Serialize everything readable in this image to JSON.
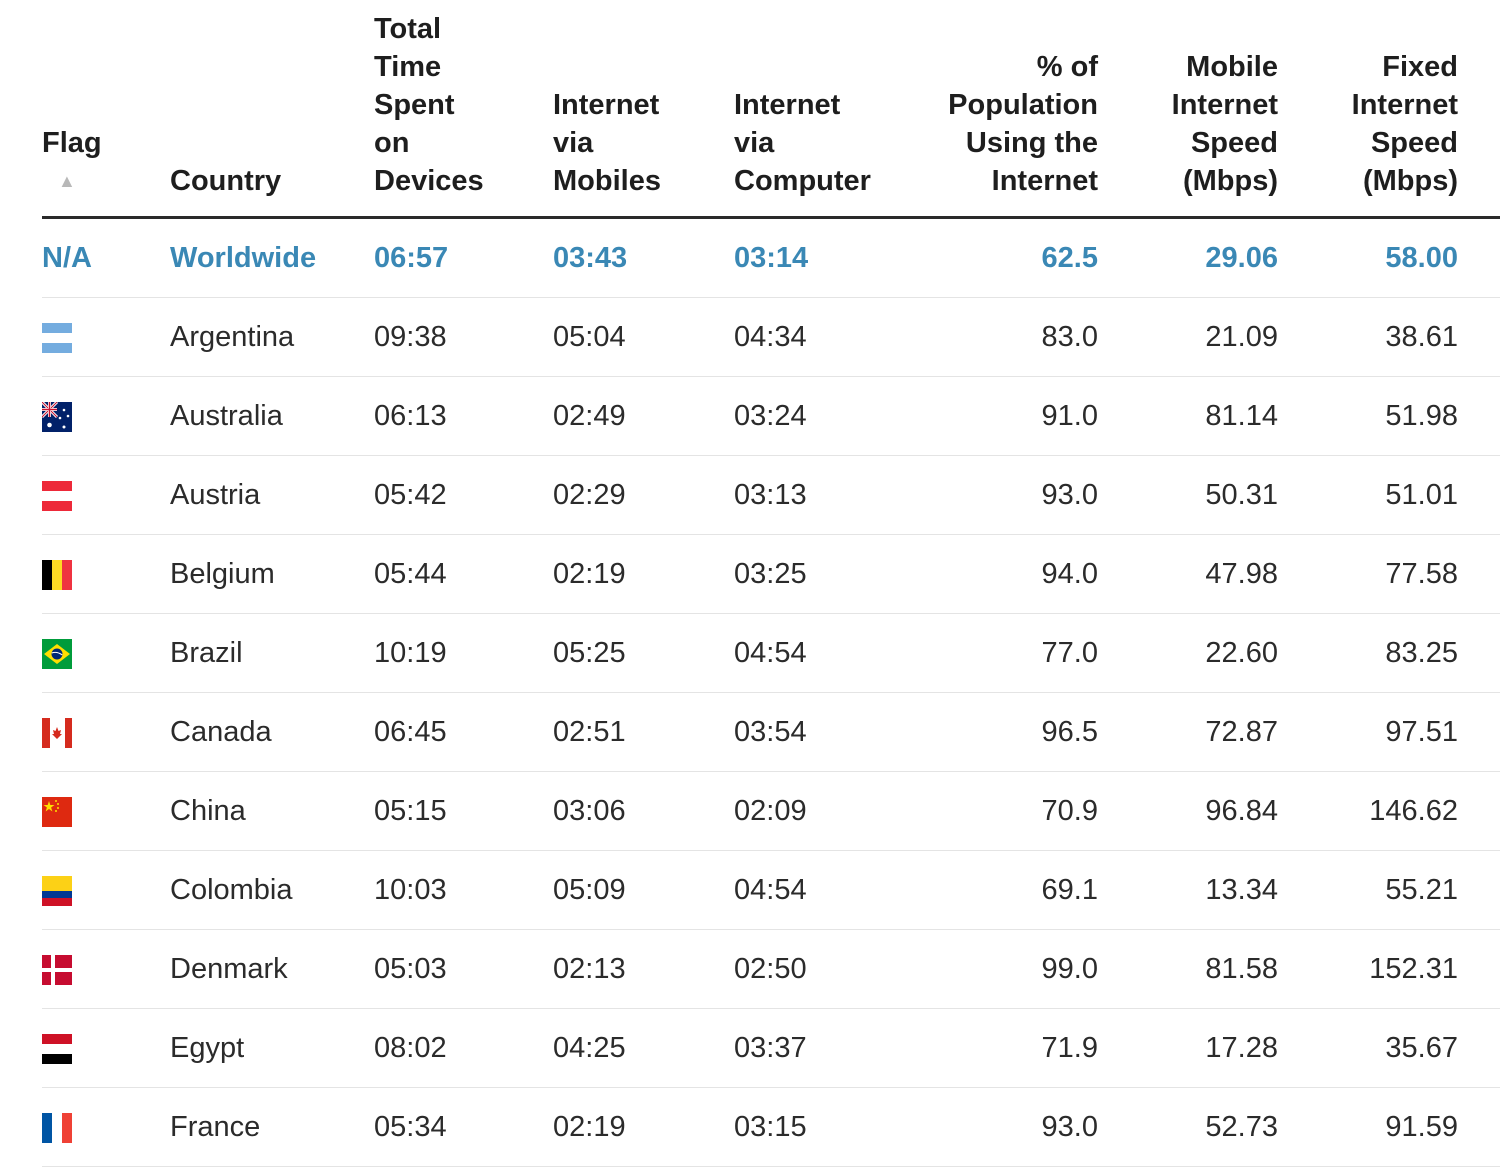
{
  "table": {
    "columns": [
      {
        "key": "flag",
        "label_lines": [
          "Flag"
        ],
        "sortable": true,
        "align": "left"
      },
      {
        "key": "country",
        "label_lines": [
          "Country"
        ],
        "align": "left"
      },
      {
        "key": "total",
        "label_lines": [
          "Total",
          "Time",
          "Spent",
          "on",
          "Devices"
        ],
        "align": "left"
      },
      {
        "key": "mobile",
        "label_lines": [
          "Internet",
          "via",
          "Mobiles"
        ],
        "align": "left"
      },
      {
        "key": "computer",
        "label_lines": [
          "Internet",
          "via",
          "Computer"
        ],
        "align": "left"
      },
      {
        "key": "population",
        "label_lines": [
          "% of",
          "Population",
          "Using the",
          "Internet"
        ],
        "align": "right"
      },
      {
        "key": "mobile_speed",
        "label_lines": [
          "Mobile",
          "Internet",
          "Speed",
          "(Mbps)"
        ],
        "align": "right"
      },
      {
        "key": "fixed_speed",
        "label_lines": [
          "Fixed",
          "Internet",
          "Speed",
          "(Mbps)"
        ],
        "align": "right"
      }
    ],
    "sort_indicator": "▲",
    "rows": [
      {
        "flag_text": "N/A",
        "flag": null,
        "country": "Worldwide",
        "total": "06:57",
        "mobile": "03:43",
        "computer": "03:14",
        "population": "62.5",
        "mobile_speed": "29.06",
        "fixed_speed": "58.00",
        "highlight": true
      },
      {
        "flag": "argentina-flag-icon",
        "country": "Argentina",
        "total": "09:38",
        "mobile": "05:04",
        "computer": "04:34",
        "population": "83.0",
        "mobile_speed": "21.09",
        "fixed_speed": "38.61"
      },
      {
        "flag": "australia-flag-icon",
        "country": "Australia",
        "total": "06:13",
        "mobile": "02:49",
        "computer": "03:24",
        "population": "91.0",
        "mobile_speed": "81.14",
        "fixed_speed": "51.98"
      },
      {
        "flag": "austria-flag-icon",
        "country": "Austria",
        "total": "05:42",
        "mobile": "02:29",
        "computer": "03:13",
        "population": "93.0",
        "mobile_speed": "50.31",
        "fixed_speed": "51.01"
      },
      {
        "flag": "belgium-flag-icon",
        "country": "Belgium",
        "total": "05:44",
        "mobile": "02:19",
        "computer": "03:25",
        "population": "94.0",
        "mobile_speed": "47.98",
        "fixed_speed": "77.58"
      },
      {
        "flag": "brazil-flag-icon",
        "country": "Brazil",
        "total": "10:19",
        "mobile": "05:25",
        "computer": "04:54",
        "population": "77.0",
        "mobile_speed": "22.60",
        "fixed_speed": "83.25"
      },
      {
        "flag": "canada-flag-icon",
        "country": "Canada",
        "total": "06:45",
        "mobile": "02:51",
        "computer": "03:54",
        "population": "96.5",
        "mobile_speed": "72.87",
        "fixed_speed": "97.51"
      },
      {
        "flag": "china-flag-icon",
        "country": "China",
        "total": "05:15",
        "mobile": "03:06",
        "computer": "02:09",
        "population": "70.9",
        "mobile_speed": "96.84",
        "fixed_speed": "146.62"
      },
      {
        "flag": "colombia-flag-icon",
        "country": "Colombia",
        "total": "10:03",
        "mobile": "05:09",
        "computer": "04:54",
        "population": "69.1",
        "mobile_speed": "13.34",
        "fixed_speed": "55.21"
      },
      {
        "flag": "denmark-flag-icon",
        "country": "Denmark",
        "total": "05:03",
        "mobile": "02:13",
        "computer": "02:50",
        "population": "99.0",
        "mobile_speed": "81.58",
        "fixed_speed": "152.31"
      },
      {
        "flag": "egypt-flag-icon",
        "country": "Egypt",
        "total": "08:02",
        "mobile": "04:25",
        "computer": "03:37",
        "population": "71.9",
        "mobile_speed": "17.28",
        "fixed_speed": "35.67"
      },
      {
        "flag": "france-flag-icon",
        "country": "France",
        "total": "05:34",
        "mobile": "02:19",
        "computer": "03:15",
        "population": "93.0",
        "mobile_speed": "52.73",
        "fixed_speed": "91.59"
      }
    ]
  },
  "colors": {
    "highlight_text": "#3a88b5",
    "header_rule": "#2a2a2a",
    "row_divider": "#e4e4e4"
  }
}
